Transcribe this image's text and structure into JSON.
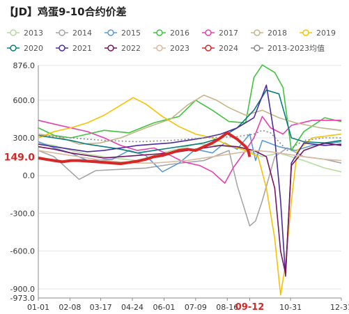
{
  "title": "【JD】鸡蛋9-10合约价差",
  "chart_data": {
    "type": "line",
    "title": "【JD】鸡蛋9-10合约价差",
    "x_ticks": [
      "01-01",
      "02-08",
      "03-17",
      "04-24",
      "06-01",
      "07-09",
      "08-16",
      "09-12",
      "10-31",
      "12-31"
    ],
    "x_tick_dates": [
      1,
      39,
      76,
      114,
      152,
      190,
      228,
      255,
      304,
      365
    ],
    "highlight_x_label": "09-12",
    "y_ticks": [
      876.0,
      600.0,
      300.0,
      0.0,
      -300.0,
      -600.0,
      -900.0,
      -973.0
    ],
    "ylim": [
      -973,
      876
    ],
    "current_value_label": "149.0",
    "highlight_color": "#d62728",
    "grid": "horizontal",
    "legend_position": "top",
    "series": [
      {
        "name": "2013",
        "color": "#b5dba0",
        "points": [
          [
            1,
            260
          ],
          [
            20,
            240
          ],
          [
            40,
            200
          ],
          [
            60,
            170
          ],
          [
            90,
            140
          ],
          [
            120,
            120
          ],
          [
            150,
            180
          ],
          [
            190,
            250
          ],
          [
            220,
            240
          ],
          [
            250,
            210
          ],
          [
            270,
            150
          ],
          [
            290,
            180
          ],
          [
            320,
            120
          ],
          [
            345,
            60
          ],
          [
            365,
            30
          ]
        ]
      },
      {
        "name": "2014",
        "color": "#a6a6a6",
        "points": [
          [
            1,
            200
          ],
          [
            20,
            150
          ],
          [
            35,
            60
          ],
          [
            50,
            -30
          ],
          [
            70,
            40
          ],
          [
            100,
            50
          ],
          [
            130,
            60
          ],
          [
            160,
            90
          ],
          [
            200,
            120
          ],
          [
            230,
            200
          ],
          [
            240,
            -80
          ],
          [
            255,
            -400
          ],
          [
            262,
            -360
          ],
          [
            270,
            -200
          ],
          [
            285,
            150
          ],
          [
            300,
            220
          ],
          [
            320,
            150
          ],
          [
            345,
            130
          ],
          [
            365,
            100
          ]
        ]
      },
      {
        "name": "2015",
        "color": "#5b9bd5",
        "points": [
          [
            1,
            270
          ],
          [
            20,
            220
          ],
          [
            40,
            180
          ],
          [
            60,
            120
          ],
          [
            90,
            130
          ],
          [
            110,
            200
          ],
          [
            130,
            160
          ],
          [
            150,
            30
          ],
          [
            170,
            100
          ],
          [
            190,
            210
          ],
          [
            210,
            180
          ],
          [
            225,
            260
          ],
          [
            240,
            210
          ],
          [
            255,
            330
          ],
          [
            262,
            120
          ],
          [
            270,
            280
          ],
          [
            290,
            230
          ],
          [
            310,
            200
          ],
          [
            330,
            240
          ],
          [
            365,
            270
          ]
        ]
      },
      {
        "name": "2016",
        "color": "#3ec43e",
        "points": [
          [
            1,
            380
          ],
          [
            20,
            320
          ],
          [
            40,
            300
          ],
          [
            60,
            330
          ],
          [
            80,
            360
          ],
          [
            110,
            340
          ],
          [
            140,
            420
          ],
          [
            170,
            470
          ],
          [
            190,
            600
          ],
          [
            210,
            520
          ],
          [
            230,
            430
          ],
          [
            250,
            420
          ],
          [
            260,
            780
          ],
          [
            270,
            880
          ],
          [
            285,
            820
          ],
          [
            295,
            700
          ],
          [
            305,
            200
          ],
          [
            320,
            350
          ],
          [
            345,
            460
          ],
          [
            365,
            430
          ]
        ]
      },
      {
        "name": "2017",
        "color": "#e83fae",
        "points": [
          [
            1,
            440
          ],
          [
            20,
            410
          ],
          [
            40,
            380
          ],
          [
            60,
            350
          ],
          [
            80,
            300
          ],
          [
            100,
            240
          ],
          [
            120,
            200
          ],
          [
            140,
            220
          ],
          [
            160,
            160
          ],
          [
            175,
            110
          ],
          [
            195,
            80
          ],
          [
            210,
            30
          ],
          [
            225,
            -60
          ],
          [
            235,
            60
          ],
          [
            250,
            200
          ],
          [
            260,
            300
          ],
          [
            270,
            470
          ],
          [
            280,
            380
          ],
          [
            295,
            330
          ],
          [
            305,
            400
          ],
          [
            330,
            440
          ],
          [
            365,
            440
          ]
        ]
      },
      {
        "name": "2018",
        "color": "#c5b58a",
        "points": [
          [
            1,
            330
          ],
          [
            25,
            310
          ],
          [
            50,
            250
          ],
          [
            75,
            260
          ],
          [
            100,
            300
          ],
          [
            130,
            380
          ],
          [
            160,
            450
          ],
          [
            180,
            560
          ],
          [
            200,
            640
          ],
          [
            215,
            600
          ],
          [
            230,
            540
          ],
          [
            250,
            480
          ],
          [
            270,
            520
          ],
          [
            290,
            460
          ],
          [
            310,
            420
          ],
          [
            340,
            380
          ],
          [
            365,
            360
          ]
        ]
      },
      {
        "name": "2019",
        "color": "#f6c200",
        "points": [
          [
            1,
            300
          ],
          [
            20,
            350
          ],
          [
            40,
            380
          ],
          [
            60,
            420
          ],
          [
            80,
            480
          ],
          [
            100,
            560
          ],
          [
            115,
            620
          ],
          [
            130,
            570
          ],
          [
            150,
            470
          ],
          [
            170,
            390
          ],
          [
            190,
            330
          ],
          [
            210,
            300
          ],
          [
            230,
            240
          ],
          [
            250,
            200
          ],
          [
            265,
            150
          ],
          [
            275,
            -100
          ],
          [
            285,
            -500
          ],
          [
            292,
            -950
          ],
          [
            298,
            -700
          ],
          [
            305,
            -200
          ],
          [
            312,
            200
          ],
          [
            330,
            300
          ],
          [
            365,
            330
          ]
        ]
      },
      {
        "name": "2020",
        "color": "#0a7c7c",
        "points": [
          [
            1,
            320
          ],
          [
            20,
            300
          ],
          [
            40,
            280
          ],
          [
            60,
            250
          ],
          [
            80,
            230
          ],
          [
            100,
            210
          ],
          [
            120,
            180
          ],
          [
            140,
            200
          ],
          [
            160,
            220
          ],
          [
            180,
            240
          ],
          [
            200,
            260
          ],
          [
            220,
            300
          ],
          [
            240,
            380
          ],
          [
            260,
            520
          ],
          [
            275,
            680
          ],
          [
            290,
            650
          ],
          [
            305,
            300
          ],
          [
            320,
            270
          ],
          [
            345,
            260
          ],
          [
            365,
            280
          ]
        ]
      },
      {
        "name": "2021",
        "color": "#4b2aa0",
        "points": [
          [
            1,
            250
          ],
          [
            20,
            230
          ],
          [
            40,
            210
          ],
          [
            60,
            190
          ],
          [
            80,
            200
          ],
          [
            100,
            220
          ],
          [
            120,
            240
          ],
          [
            140,
            250
          ],
          [
            160,
            260
          ],
          [
            180,
            280
          ],
          [
            200,
            300
          ],
          [
            220,
            330
          ],
          [
            240,
            380
          ],
          [
            260,
            460
          ],
          [
            275,
            720
          ],
          [
            285,
            300
          ],
          [
            292,
            -200
          ],
          [
            298,
            -800
          ],
          [
            305,
            100
          ],
          [
            320,
            260
          ],
          [
            345,
            240
          ],
          [
            365,
            250
          ]
        ]
      },
      {
        "name": "2022",
        "color": "#7a1262",
        "points": [
          [
            1,
            230
          ],
          [
            20,
            210
          ],
          [
            40,
            180
          ],
          [
            60,
            160
          ],
          [
            80,
            140
          ],
          [
            100,
            150
          ],
          [
            120,
            160
          ],
          [
            140,
            170
          ],
          [
            160,
            180
          ],
          [
            180,
            200
          ],
          [
            200,
            220
          ],
          [
            220,
            240
          ],
          [
            240,
            230
          ],
          [
            260,
            200
          ],
          [
            275,
            150
          ],
          [
            285,
            -100
          ],
          [
            292,
            -600
          ],
          [
            298,
            -780
          ],
          [
            305,
            80
          ],
          [
            320,
            200
          ],
          [
            345,
            260
          ],
          [
            365,
            240
          ]
        ]
      },
      {
        "name": "2023",
        "color": "#d9b9a0",
        "points": [
          [
            1,
            200
          ],
          [
            20,
            180
          ],
          [
            40,
            160
          ],
          [
            60,
            140
          ],
          [
            80,
            120
          ],
          [
            100,
            110
          ],
          [
            120,
            100
          ],
          [
            140,
            100
          ],
          [
            160,
            110
          ],
          [
            180,
            120
          ],
          [
            200,
            140
          ],
          [
            220,
            160
          ],
          [
            240,
            180
          ],
          [
            260,
            200
          ],
          [
            280,
            190
          ],
          [
            300,
            170
          ],
          [
            320,
            150
          ],
          [
            345,
            130
          ],
          [
            365,
            120
          ]
        ]
      },
      {
        "name": "2024",
        "color": "#d62728",
        "points": [
          [
            1,
            140
          ],
          [
            10,
            130
          ],
          [
            20,
            120
          ],
          [
            30,
            110
          ],
          [
            40,
            120
          ],
          [
            50,
            120
          ],
          [
            60,
            115
          ],
          [
            70,
            110
          ],
          [
            80,
            105
          ],
          [
            90,
            100
          ],
          [
            100,
            95
          ],
          [
            110,
            105
          ],
          [
            120,
            115
          ],
          [
            130,
            130
          ],
          [
            140,
            150
          ],
          [
            150,
            160
          ],
          [
            160,
            180
          ],
          [
            170,
            200
          ],
          [
            180,
            210
          ],
          [
            190,
            200
          ],
          [
            200,
            230
          ],
          [
            210,
            260
          ],
          [
            220,
            300
          ],
          [
            228,
            340
          ],
          [
            235,
            310
          ],
          [
            240,
            290
          ],
          [
            245,
            260
          ],
          [
            250,
            230
          ],
          [
            253,
            200
          ],
          [
            255,
            149
          ]
        ],
        "bold": true
      },
      {
        "name": "2013-2023均值",
        "color": "#888888",
        "points": [
          [
            1,
            320
          ],
          [
            40,
            300
          ],
          [
            80,
            280
          ],
          [
            120,
            270
          ],
          [
            160,
            280
          ],
          [
            200,
            300
          ],
          [
            240,
            310
          ],
          [
            260,
            330
          ],
          [
            270,
            360
          ],
          [
            280,
            340
          ],
          [
            300,
            200
          ],
          [
            320,
            280
          ],
          [
            345,
            300
          ],
          [
            365,
            300
          ]
        ],
        "dotted": true
      }
    ]
  }
}
